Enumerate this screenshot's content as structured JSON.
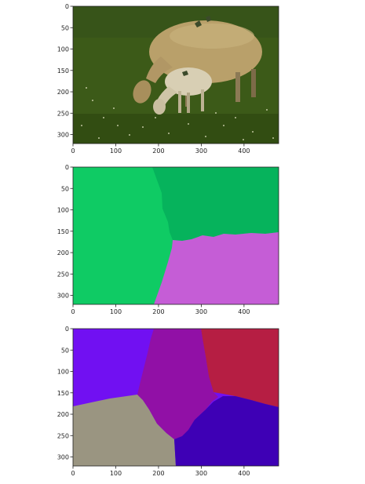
{
  "chart_data": [
    {
      "type": "image",
      "content": "original photo: ewe and lamb grazing on grass",
      "x_ticks": [
        0,
        100,
        200,
        300,
        400
      ],
      "y_ticks": [
        0,
        50,
        100,
        150,
        200,
        250,
        300
      ],
      "xlim": [
        0,
        481
      ],
      "ylim": [
        321,
        0
      ],
      "title": "",
      "xlabel": "",
      "ylabel": "",
      "grid": false,
      "colors": {
        "grass": "#3c5a18",
        "grass_dark": "#2b4510",
        "sheep_wool": "#b9a06a",
        "lamb_wool": "#d8cfb4"
      }
    },
    {
      "type": "segmentation",
      "segments": 3,
      "x_ticks": [
        0,
        100,
        200,
        300,
        400
      ],
      "y_ticks": [
        0,
        50,
        100,
        150,
        200,
        250,
        300
      ],
      "xlim": [
        0,
        481
      ],
      "ylim": [
        321,
        0
      ],
      "title": "",
      "xlabel": "",
      "ylabel": "",
      "grid": false,
      "colors": {
        "segment_left": "#0fcb64",
        "segment_top_right": "#06b35c",
        "segment_bottom_right": "#c55dd6"
      }
    },
    {
      "type": "segmentation",
      "segments": 5,
      "x_ticks": [
        0,
        100,
        200,
        300,
        400
      ],
      "y_ticks": [
        0,
        50,
        100,
        150,
        200,
        250,
        300
      ],
      "xlim": [
        0,
        481
      ],
      "ylim": [
        321,
        0
      ],
      "title": "",
      "xlabel": "",
      "ylabel": "",
      "grid": false,
      "colors": {
        "segment_top_left": "#7110f2",
        "segment_center": "#9110a6",
        "segment_top_right": "#b61e43",
        "segment_bottom_left": "#9a9581",
        "segment_bottom_right": "#3e00b5"
      }
    }
  ]
}
